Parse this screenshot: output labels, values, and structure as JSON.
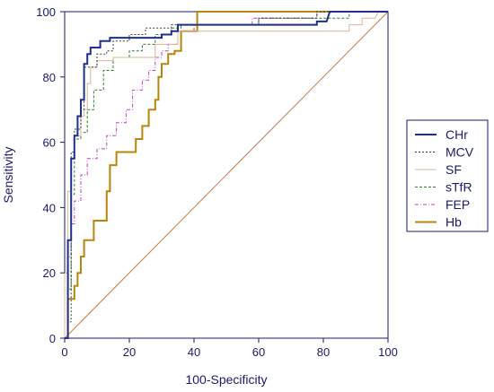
{
  "chart_data": {
    "type": "line",
    "xlabel": "100-Specificity",
    "ylabel": "Sensitivity",
    "xlim": [
      0,
      100
    ],
    "ylim": [
      0,
      100
    ],
    "x_ticks": [
      "0",
      "20",
      "40",
      "60",
      "80",
      "100"
    ],
    "y_ticks": [
      "0",
      "20",
      "40",
      "60",
      "80",
      "100"
    ],
    "grid": false,
    "legend_position": "right",
    "reference_line": {
      "from": [
        0,
        0
      ],
      "to": [
        100,
        100
      ],
      "color": "#c87a4a"
    },
    "series": [
      {
        "name": "CHr",
        "color": "#1f2f8f",
        "dash": "solid",
        "width": 2,
        "points": [
          [
            0,
            0
          ],
          [
            1,
            0
          ],
          [
            1,
            30
          ],
          [
            2,
            30
          ],
          [
            2,
            55
          ],
          [
            3,
            55
          ],
          [
            3,
            62
          ],
          [
            4,
            62
          ],
          [
            4,
            68
          ],
          [
            5,
            68
          ],
          [
            5,
            73
          ],
          [
            6,
            73
          ],
          [
            6,
            84
          ],
          [
            7,
            84
          ],
          [
            7,
            87
          ],
          [
            8,
            87
          ],
          [
            8,
            89
          ],
          [
            11,
            89
          ],
          [
            11,
            91
          ],
          [
            14,
            91
          ],
          [
            14,
            92
          ],
          [
            30,
            92
          ],
          [
            30,
            93
          ],
          [
            33,
            93
          ],
          [
            33,
            94
          ],
          [
            35,
            94
          ],
          [
            35,
            96
          ],
          [
            78,
            96
          ],
          [
            78,
            97
          ],
          [
            81,
            97
          ],
          [
            82,
            100
          ],
          [
            100,
            100
          ]
        ]
      },
      {
        "name": "MCV",
        "color": "#3a3a3a",
        "dash": "2,2",
        "width": 1,
        "points": [
          [
            0,
            0
          ],
          [
            1,
            0
          ],
          [
            1,
            5
          ],
          [
            2,
            5
          ],
          [
            2,
            57
          ],
          [
            3,
            57
          ],
          [
            3,
            64
          ],
          [
            5,
            64
          ],
          [
            5,
            70
          ],
          [
            6,
            70
          ],
          [
            6,
            83
          ],
          [
            10,
            83
          ],
          [
            10,
            87
          ],
          [
            13,
            87
          ],
          [
            13,
            88
          ],
          [
            15,
            88
          ],
          [
            15,
            91
          ],
          [
            20,
            91
          ],
          [
            20,
            93
          ],
          [
            25,
            93
          ],
          [
            25,
            95
          ],
          [
            33,
            95
          ],
          [
            33,
            96
          ],
          [
            60,
            96
          ],
          [
            60,
            98
          ],
          [
            78,
            98
          ],
          [
            78,
            100
          ],
          [
            100,
            100
          ]
        ]
      },
      {
        "name": "SF",
        "color": "#d8b894",
        "dash": "solid",
        "width": 1,
        "points": [
          [
            0,
            0
          ],
          [
            0,
            20
          ],
          [
            1,
            20
          ],
          [
            1,
            45
          ],
          [
            2,
            45
          ],
          [
            2,
            55
          ],
          [
            3,
            55
          ],
          [
            3,
            62
          ],
          [
            5,
            62
          ],
          [
            5,
            68
          ],
          [
            6,
            68
          ],
          [
            6,
            70
          ],
          [
            7,
            70
          ],
          [
            7,
            78
          ],
          [
            8,
            78
          ],
          [
            8,
            83
          ],
          [
            10,
            83
          ],
          [
            10,
            85
          ],
          [
            15,
            85
          ],
          [
            15,
            86
          ],
          [
            28,
            86
          ],
          [
            28,
            90
          ],
          [
            35,
            90
          ],
          [
            35,
            94
          ],
          [
            88,
            94
          ],
          [
            88,
            96
          ],
          [
            92,
            96
          ],
          [
            92,
            98
          ],
          [
            96,
            98
          ],
          [
            97,
            100
          ],
          [
            100,
            100
          ]
        ]
      },
      {
        "name": "sTfR",
        "color": "#2e7d32",
        "dash": "3,2",
        "width": 1,
        "points": [
          [
            0,
            0
          ],
          [
            1,
            0
          ],
          [
            1,
            15
          ],
          [
            2,
            15
          ],
          [
            2,
            44
          ],
          [
            3,
            44
          ],
          [
            3,
            61
          ],
          [
            5,
            61
          ],
          [
            5,
            63
          ],
          [
            7,
            63
          ],
          [
            7,
            70
          ],
          [
            9,
            70
          ],
          [
            9,
            76
          ],
          [
            12,
            76
          ],
          [
            12,
            82
          ],
          [
            15,
            82
          ],
          [
            15,
            86
          ],
          [
            20,
            86
          ],
          [
            20,
            88
          ],
          [
            24,
            88
          ],
          [
            24,
            90
          ],
          [
            28,
            90
          ],
          [
            28,
            93
          ],
          [
            33,
            93
          ],
          [
            33,
            95
          ],
          [
            36,
            95
          ],
          [
            36,
            96
          ],
          [
            60,
            96
          ],
          [
            60,
            98
          ],
          [
            88,
            98
          ],
          [
            88,
            100
          ],
          [
            100,
            100
          ]
        ]
      },
      {
        "name": "FEP",
        "color": "#c040c0",
        "dash": "4,2,1,2",
        "width": 1,
        "points": [
          [
            0,
            0
          ],
          [
            1,
            0
          ],
          [
            1,
            25
          ],
          [
            2,
            25
          ],
          [
            2,
            35
          ],
          [
            3,
            35
          ],
          [
            3,
            42
          ],
          [
            5,
            42
          ],
          [
            5,
            50
          ],
          [
            7,
            50
          ],
          [
            7,
            55
          ],
          [
            10,
            55
          ],
          [
            10,
            58
          ],
          [
            13,
            58
          ],
          [
            13,
            62
          ],
          [
            16,
            62
          ],
          [
            16,
            66
          ],
          [
            19,
            66
          ],
          [
            19,
            70
          ],
          [
            21,
            70
          ],
          [
            21,
            76
          ],
          [
            24,
            76
          ],
          [
            24,
            79
          ],
          [
            26,
            79
          ],
          [
            26,
            82
          ],
          [
            28,
            82
          ],
          [
            28,
            86
          ],
          [
            30,
            86
          ],
          [
            30,
            88
          ],
          [
            32,
            88
          ],
          [
            32,
            90
          ],
          [
            35,
            90
          ],
          [
            35,
            94
          ],
          [
            40,
            94
          ],
          [
            40,
            96
          ],
          [
            58,
            96
          ],
          [
            58,
            98
          ],
          [
            78,
            98
          ],
          [
            78,
            100
          ],
          [
            100,
            100
          ]
        ]
      },
      {
        "name": "Hb",
        "color": "#b8860b",
        "dash": "solid",
        "width": 2,
        "points": [
          [
            0,
            0
          ],
          [
            1,
            0
          ],
          [
            1,
            12
          ],
          [
            3,
            12
          ],
          [
            3,
            16
          ],
          [
            4,
            16
          ],
          [
            4,
            20
          ],
          [
            5,
            20
          ],
          [
            5,
            25
          ],
          [
            6,
            25
          ],
          [
            6,
            30
          ],
          [
            9,
            30
          ],
          [
            9,
            36
          ],
          [
            13,
            36
          ],
          [
            13,
            45
          ],
          [
            14,
            45
          ],
          [
            14,
            53
          ],
          [
            16,
            53
          ],
          [
            16,
            57
          ],
          [
            22,
            57
          ],
          [
            22,
            61
          ],
          [
            24,
            61
          ],
          [
            24,
            65
          ],
          [
            26,
            65
          ],
          [
            26,
            70
          ],
          [
            28,
            70
          ],
          [
            28,
            73
          ],
          [
            29,
            73
          ],
          [
            29,
            80
          ],
          [
            30,
            80
          ],
          [
            30,
            84
          ],
          [
            32,
            84
          ],
          [
            32,
            87
          ],
          [
            34,
            87
          ],
          [
            34,
            88
          ],
          [
            36,
            88
          ],
          [
            36,
            94
          ],
          [
            41,
            94
          ],
          [
            41,
            100
          ],
          [
            100,
            100
          ]
        ]
      }
    ]
  }
}
